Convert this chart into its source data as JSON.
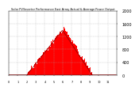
{
  "title": "Solar PV/Inverter Performance East Array Actual & Average Power Output",
  "background_color": "#ffffff",
  "plot_bg_color": "#ffffff",
  "bar_color": "#ff0000",
  "grid_color": "#aaaaaa",
  "ylim": [
    0,
    2000
  ],
  "xlim": [
    0,
    144
  ],
  "yticks": [
    0,
    400,
    800,
    1200,
    1600,
    2000
  ],
  "ytick_labels": [
    "0",
    "400",
    "800",
    "1200",
    "1600",
    "2000"
  ],
  "num_bars": 144
}
